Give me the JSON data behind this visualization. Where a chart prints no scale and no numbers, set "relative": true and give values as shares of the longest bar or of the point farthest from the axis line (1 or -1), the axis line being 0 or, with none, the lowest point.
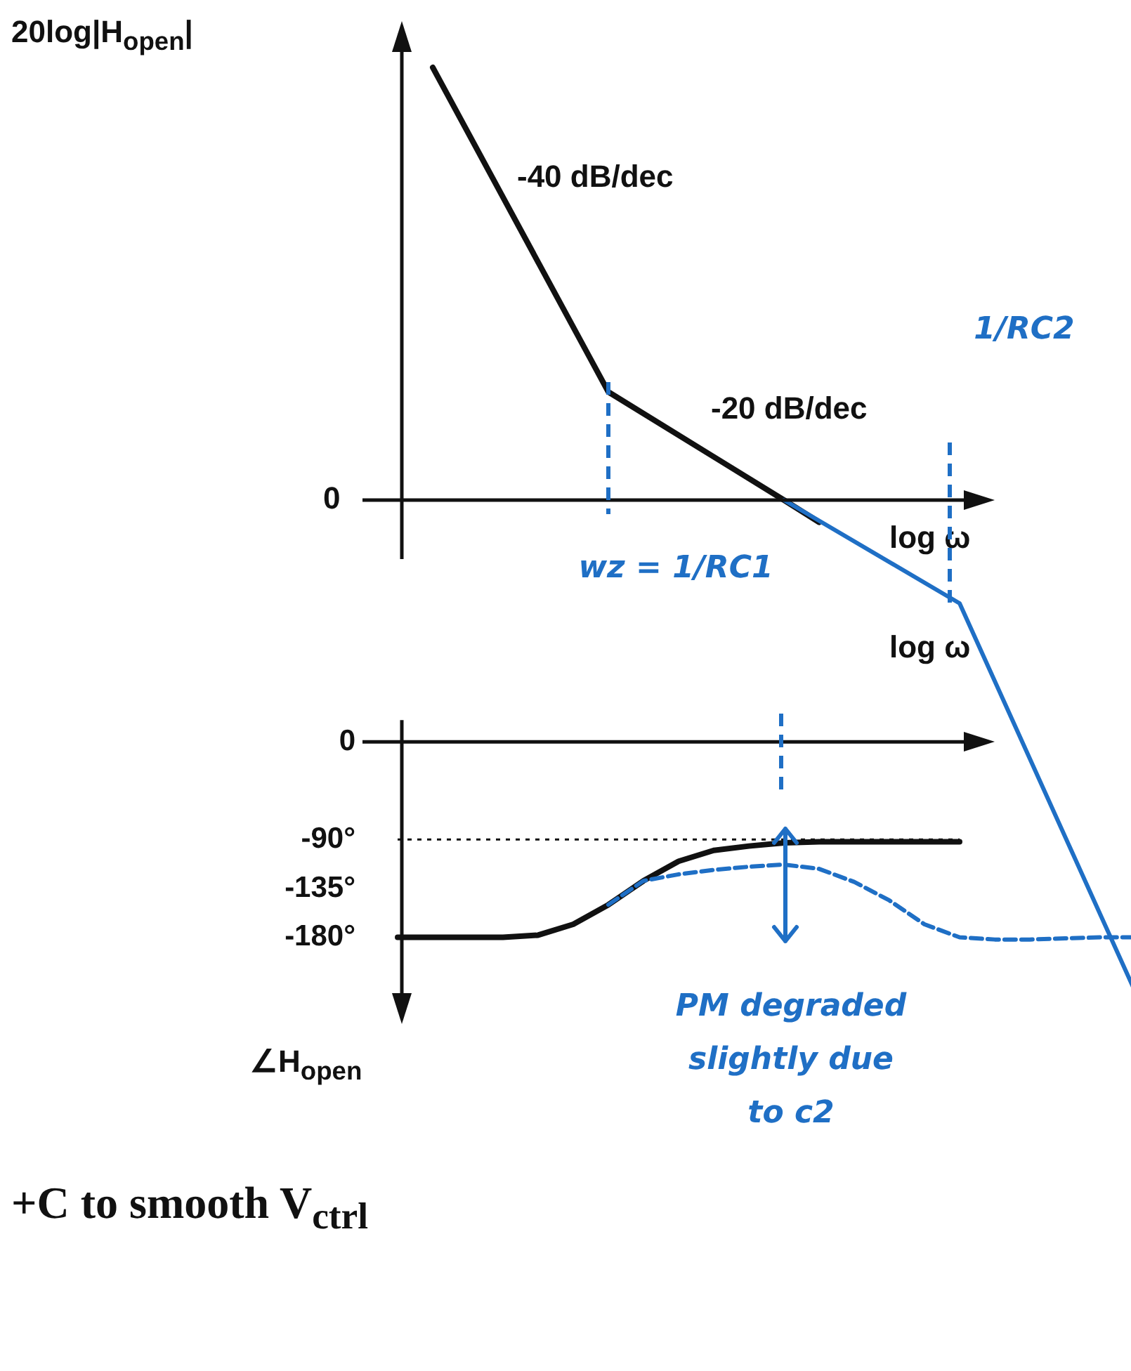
{
  "chart_data": [
    {
      "type": "line",
      "relative": true,
      "ylabel": "20log|H$_{open}$|",
      "xlabel": "log ω",
      "marker": "none",
      "tick_labels": false,
      "categories": [
        null,
        null,
        null,
        null,
        null,
        null,
        null,
        null,
        null,
        null,
        null,
        null,
        null,
        null,
        null,
        null,
        null,
        null,
        null,
        null,
        null,
        null
      ],
      "series": [
        {
          "color": "#111111",
          "line_style": "solid",
          "values": [
            null,
            0.88,
            null,
            null,
            null,
            null,
            0.22,
            null,
            null,
            null,
            null,
            0,
            -0.045,
            null,
            null,
            null,
            null,
            null,
            null,
            null,
            null,
            null
          ]
        },
        {
          "color": "#1f6fc5",
          "line_style": "solid",
          "values": [
            null,
            null,
            null,
            null,
            null,
            null,
            null,
            null,
            null,
            null,
            null,
            0,
            null,
            null,
            null,
            null,
            -0.21,
            null,
            null,
            null,
            null,
            -1
          ]
        }
      ],
      "annotations": [
        "0",
        "-40 dB/dec",
        "-20 dB/dec",
        "wz = 1/RC1",
        "1/RC2"
      ]
    },
    {
      "type": "line",
      "ylabel": "∠H$_{open}$",
      "xlabel": "log ω",
      "marker": "none",
      "tick_labels": "y",
      "categories": [
        null,
        null,
        null,
        null,
        null,
        null,
        null,
        null,
        null,
        null,
        null,
        null,
        null,
        null,
        null,
        null,
        null,
        null,
        null,
        null,
        null,
        null
      ],
      "ylim": [
        -250,
        20
      ],
      "yticks": [
        0,
        {
          "value": -90,
          "label": "-90°"
        },
        {
          "value": -135,
          "label": "-135°"
        },
        {
          "value": -180,
          "label": "-180°"
        }
      ],
      "ref_lines": [
        {
          "axis": "y",
          "value": -90,
          "line_style": "dotted",
          "color": "#111111"
        }
      ],
      "series": [
        {
          "color": "#111111",
          "line_style": "solid",
          "values": [
            -180,
            -180,
            -180,
            -180,
            -178,
            -168,
            -150,
            -128,
            -110,
            -100,
            -96,
            -93,
            -92,
            -92,
            -92,
            -92,
            -92,
            null,
            null,
            null,
            null,
            null
          ]
        },
        {
          "color": "#1f6fc5",
          "line_style": "dashed",
          "values": [
            null,
            null,
            null,
            null,
            null,
            null,
            -150,
            -128,
            -122,
            -118,
            -115,
            -113,
            -117,
            -129,
            -146,
            -168,
            -180,
            -182,
            -182,
            -181,
            -180,
            -180
          ]
        }
      ],
      "annotations": [
        "PM degraded slightly due to c2",
        "+C to smooth V$_{ctrl}$"
      ]
    }
  ]
}
